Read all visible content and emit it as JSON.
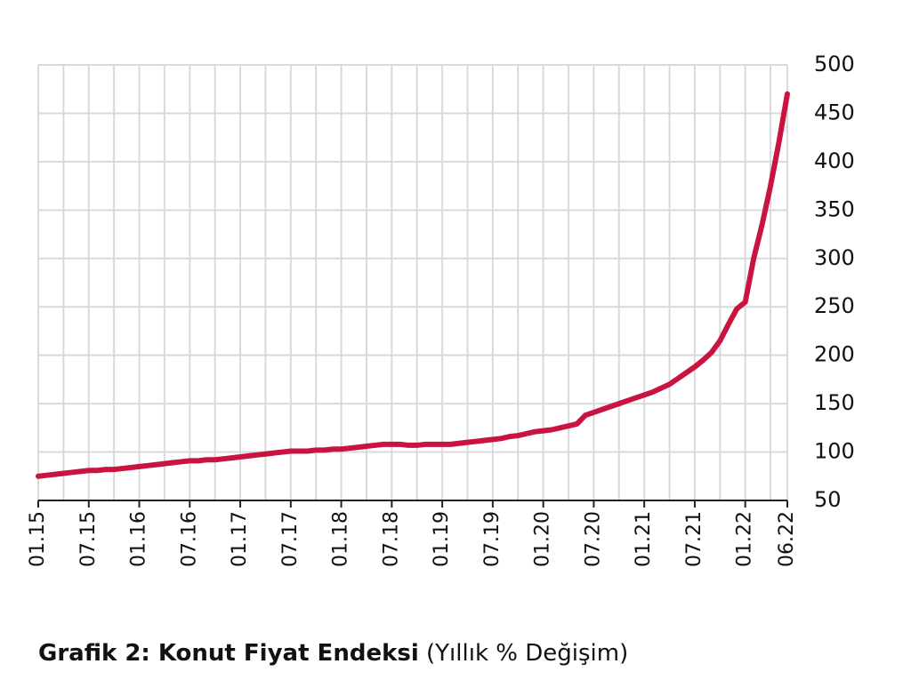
{
  "chart_data": {
    "type": "line",
    "title": "Grafik 2: Konut Fiyat Endeksi",
    "subtitle": "(Yıllık % Değişim)",
    "categories": [
      "01.15",
      null,
      null,
      null,
      null,
      null,
      "07.15",
      null,
      null,
      null,
      null,
      null,
      "01.16",
      null,
      null,
      null,
      null,
      null,
      "07.16",
      null,
      null,
      null,
      null,
      null,
      "01.17",
      null,
      null,
      null,
      null,
      null,
      "07.17",
      null,
      null,
      null,
      null,
      null,
      "01.18",
      null,
      null,
      null,
      null,
      null,
      "07.18",
      null,
      null,
      null,
      null,
      null,
      "01.19",
      null,
      null,
      null,
      null,
      null,
      "07.19",
      null,
      null,
      null,
      null,
      null,
      "01.20",
      null,
      null,
      null,
      null,
      null,
      "07.20",
      null,
      null,
      null,
      null,
      null,
      "01.21",
      null,
      null,
      null,
      null,
      null,
      "07.21",
      null,
      null,
      null,
      null,
      null,
      "01.22",
      null,
      null,
      null,
      null,
      "06.22"
    ],
    "series": [
      {
        "color": "#c8143f",
        "values": [
          75,
          76,
          77,
          78,
          79,
          80,
          81,
          81,
          82,
          82,
          83,
          84,
          85,
          86,
          87,
          88,
          89,
          90,
          91,
          91,
          92,
          92,
          93,
          94,
          95,
          96,
          97,
          98,
          99,
          100,
          101,
          101,
          101,
          102,
          102,
          103,
          103,
          104,
          105,
          106,
          107,
          108,
          108,
          108,
          107,
          107,
          108,
          108,
          108,
          108,
          109,
          110,
          111,
          112,
          113,
          114,
          116,
          117,
          119,
          121,
          122,
          123,
          125,
          127,
          129,
          138,
          141,
          144,
          147,
          150,
          153,
          156,
          159,
          162,
          166,
          170,
          176,
          182,
          188,
          195,
          203,
          215,
          232,
          248,
          255,
          300,
          335,
          375,
          420,
          470
        ]
      }
    ],
    "ylim": [
      50,
      500
    ],
    "yticks": [
      50,
      100,
      150,
      200,
      250,
      300,
      350,
      400,
      450,
      500
    ],
    "grid": true
  }
}
